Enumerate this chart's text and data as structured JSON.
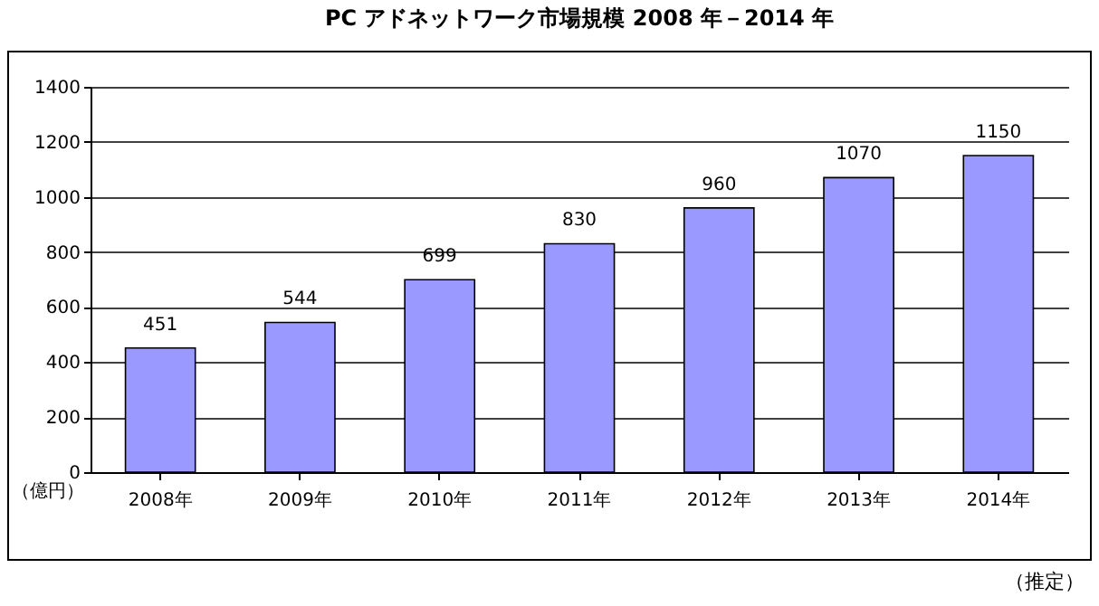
{
  "chart_data": {
    "type": "bar",
    "title": "PC アドネットワーク市場規模 2008 年－2014 年",
    "ylabel": "（億円）",
    "categories": [
      "2008年",
      "2009年",
      "2010年",
      "2011年",
      "2012年",
      "2013年",
      "2014年"
    ],
    "values": [
      451,
      544,
      699,
      830,
      960,
      1070,
      1150
    ],
    "color": "#9999ff",
    "ylim": [
      0,
      1400
    ],
    "yticks": [
      0,
      200,
      400,
      600,
      800,
      1000,
      1200,
      1400
    ],
    "grid": "y",
    "data_labels": true,
    "annotations": [
      "（推定）"
    ]
  }
}
